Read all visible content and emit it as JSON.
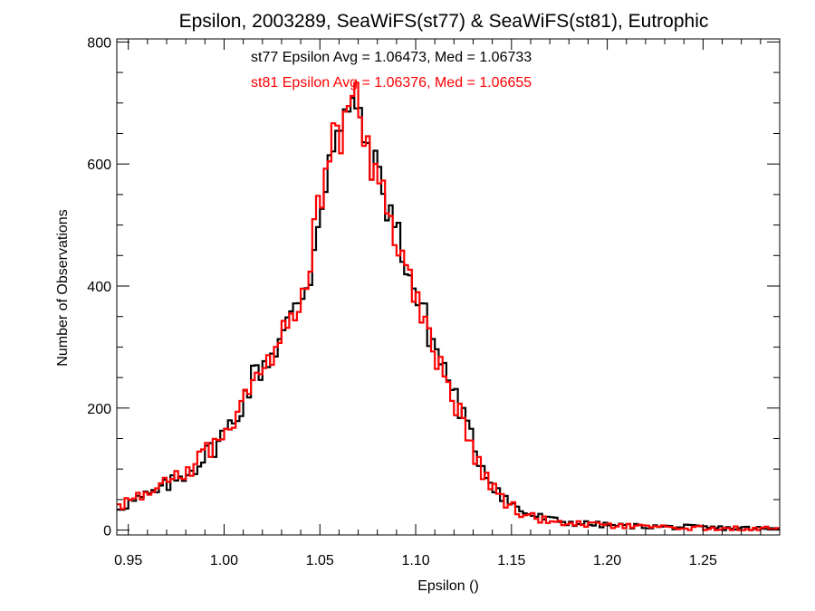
{
  "chart_data": {
    "type": "histogram",
    "title": "Epsilon, 2003289, SeaWiFS(st77) & SeaWiFS(st81), Eutrophic",
    "xlabel": "Epsilon ()",
    "ylabel": "Number of Observations",
    "xlim": [
      0.944,
      1.29
    ],
    "ylim": [
      -8,
      805
    ],
    "x_ticks": [
      0.95,
      1.0,
      1.05,
      1.1,
      1.15,
      1.2,
      1.25
    ],
    "x_tick_labels": [
      "0.95",
      "1.00",
      "1.05",
      "1.10",
      "1.15",
      "1.20",
      "1.25"
    ],
    "y_ticks": [
      0,
      200,
      400,
      600,
      800
    ],
    "y_tick_labels": [
      "0",
      "200",
      "400",
      "600",
      "800"
    ],
    "grid": false,
    "bin_width": 0.002,
    "annotations": [
      {
        "text": "st77 Epsilon Avg = 1.06473, Med = 1.06733",
        "color": "#000000"
      },
      {
        "text": "st81 Epsilon Avg = 1.06376, Med = 1.06655",
        "color": "#ff0000"
      }
    ],
    "series": [
      {
        "color": "#000000",
        "x": [
          0.945,
          0.955,
          0.965,
          0.975,
          0.985,
          0.995,
          1.005,
          1.015,
          1.025,
          1.035,
          1.045,
          1.05,
          1.055,
          1.06,
          1.065,
          1.0675,
          1.07,
          1.075,
          1.08,
          1.085,
          1.09,
          1.095,
          1.1,
          1.105,
          1.11,
          1.115,
          1.12,
          1.125,
          1.13,
          1.135,
          1.14,
          1.145,
          1.15,
          1.155,
          1.16,
          1.17,
          1.18,
          1.19,
          1.2,
          1.21,
          1.22,
          1.23,
          1.24,
          1.25,
          1.26,
          1.27,
          1.28,
          1.29
        ],
        "y": [
          38,
          50,
          62,
          82,
          105,
          138,
          178,
          250,
          290,
          345,
          420,
          530,
          610,
          640,
          680,
          740,
          660,
          630,
          580,
          540,
          490,
          440,
          385,
          345,
          300,
          265,
          225,
          185,
          140,
          105,
          78,
          58,
          42,
          32,
          25,
          17,
          12,
          10,
          8,
          7,
          6,
          5,
          5,
          4,
          3,
          3,
          2,
          1
        ]
      },
      {
        "color": "#ff0000",
        "x": [
          0.945,
          0.955,
          0.965,
          0.975,
          0.985,
          0.995,
          1.005,
          1.015,
          1.025,
          1.035,
          1.045,
          1.05,
          1.055,
          1.06,
          1.065,
          1.0675,
          1.07,
          1.075,
          1.08,
          1.085,
          1.09,
          1.095,
          1.1,
          1.105,
          1.11,
          1.115,
          1.12,
          1.125,
          1.13,
          1.135,
          1.14,
          1.145,
          1.15,
          1.155,
          1.16,
          1.17,
          1.18,
          1.19,
          1.2,
          1.21,
          1.22,
          1.23,
          1.24,
          1.25,
          1.26,
          1.27,
          1.28,
          1.29
        ],
        "y": [
          42,
          52,
          65,
          85,
          108,
          142,
          185,
          255,
          295,
          355,
          440,
          540,
          620,
          650,
          690,
          730,
          670,
          625,
          575,
          530,
          480,
          430,
          375,
          335,
          290,
          255,
          215,
          175,
          132,
          98,
          72,
          52,
          38,
          29,
          22,
          15,
          11,
          9,
          7,
          6,
          5,
          4,
          4,
          3,
          3,
          2,
          2,
          1
        ]
      }
    ]
  }
}
